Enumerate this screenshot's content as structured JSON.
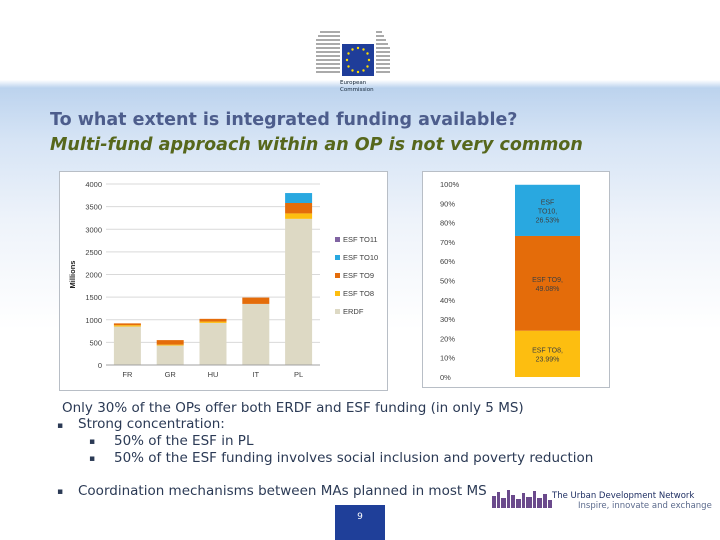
{
  "header": {
    "logo_lines": [
      "European",
      "Commission"
    ],
    "title": "To what extent is integrated funding available?",
    "subtitle": "Multi-fund approach within an OP is not very common"
  },
  "colors": {
    "erdf": "#ddd9c4",
    "esf_to8": "#fdbe10",
    "esf_to9": "#e46c0a",
    "esf_to10": "#29a8e0",
    "esf_to11": "#8064a2"
  },
  "chart_data": [
    {
      "type": "bar",
      "stacked": true,
      "ylabel": "Millions",
      "ylim": [
        0,
        4000
      ],
      "yticks": [
        "0",
        "500",
        "1000",
        "1500",
        "2000",
        "2500",
        "3000",
        "3500",
        "4000"
      ],
      "categories": [
        "FR",
        "GR",
        "HU",
        "IT",
        "PL"
      ],
      "legend": "right",
      "grid": true,
      "series": [
        {
          "name": "ERDF",
          "values": [
            850,
            430,
            930,
            1350,
            3230
          ]
        },
        {
          "name": "ESF TO8",
          "values": [
            30,
            20,
            30,
            0,
            120
          ]
        },
        {
          "name": "ESF TO9",
          "values": [
            40,
            100,
            60,
            140,
            230
          ]
        },
        {
          "name": "ESF TO10",
          "values": [
            0,
            0,
            0,
            0,
            220
          ]
        },
        {
          "name": "ESF TO11",
          "values": [
            0,
            0,
            0,
            0,
            0
          ]
        }
      ]
    },
    {
      "type": "bar",
      "stacked": true,
      "ylim": [
        0,
        100
      ],
      "yticks": [
        "0%",
        "10%",
        "20%",
        "30%",
        "40%",
        "50%",
        "60%",
        "70%",
        "80%",
        "90%",
        "100%"
      ],
      "series": [
        {
          "name": "ESF TO8",
          "value": 23.99,
          "label": [
            "ESF TO8,",
            "23.99%"
          ]
        },
        {
          "name": "ESF TO9",
          "value": 49.08,
          "label": [
            "ESF TO9,",
            "49.08%"
          ]
        },
        {
          "name": "ESF TO10",
          "value": 26.53,
          "label": [
            "ESF",
            "TO10,",
            "26.53%"
          ]
        }
      ]
    }
  ],
  "body": {
    "line1": "Only 30% of the OPs offer both ERDF and ESF funding (in only 5 MS)",
    "bullet1": "Strong concentration:",
    "sub1": "50% of the ESF in PL",
    "sub2": "50% of the ESF funding involves social inclusion and poverty reduction",
    "bullet2": "Coordination mechanisms between MAs planned in most MS"
  },
  "footer": {
    "network_name": "The Urban Development Network",
    "tagline": "Inspire, innovate and exchange",
    "page_number": "9"
  },
  "icons": {
    "logo": "eu-flag-building-icon",
    "bullet": "square-bullet-icon",
    "network": "city-skyline-icon"
  }
}
